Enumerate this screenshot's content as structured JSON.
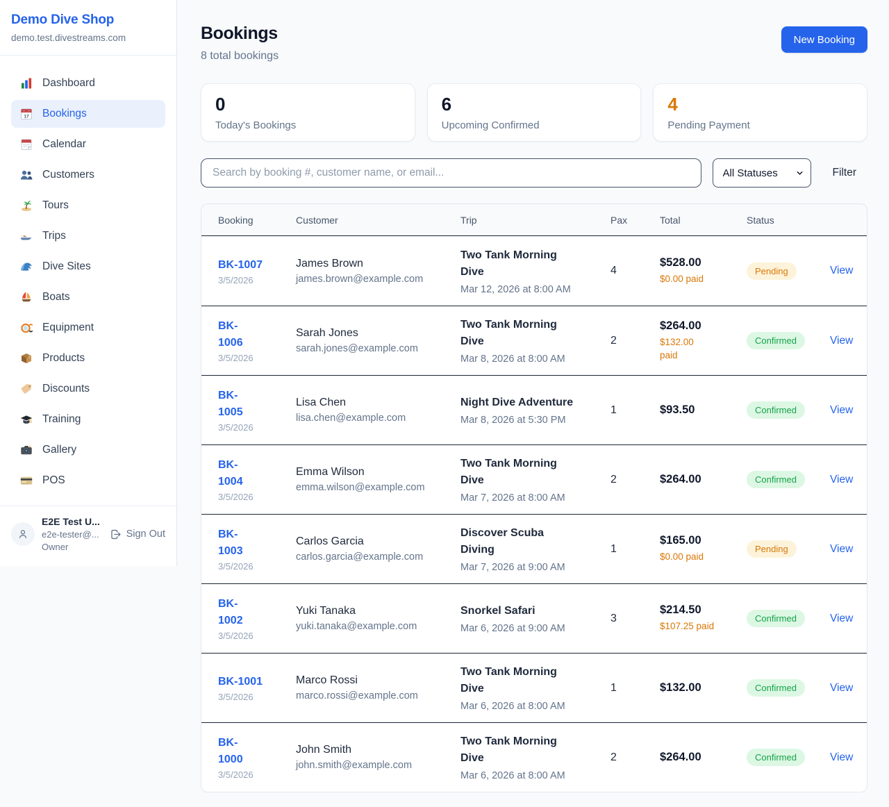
{
  "sidebar": {
    "brand": {
      "name": "Demo Dive Shop",
      "domain": "demo.test.divestreams.com"
    },
    "nav": [
      {
        "label": "Dashboard",
        "icon": "bar-chart",
        "active": false
      },
      {
        "label": "Bookings",
        "icon": "calendar-date",
        "active": true
      },
      {
        "label": "Calendar",
        "icon": "tear-calendar",
        "active": false
      },
      {
        "label": "Customers",
        "icon": "users",
        "active": false
      },
      {
        "label": "Tours",
        "icon": "island",
        "active": false
      },
      {
        "label": "Trips",
        "icon": "speedboat",
        "active": false
      },
      {
        "label": "Dive Sites",
        "icon": "wave",
        "active": false
      },
      {
        "label": "Boats",
        "icon": "sailboat",
        "active": false
      },
      {
        "label": "Equipment",
        "icon": "diving-mask",
        "active": false
      },
      {
        "label": "Products",
        "icon": "package",
        "active": false
      },
      {
        "label": "Discounts",
        "icon": "tag",
        "active": false
      },
      {
        "label": "Training",
        "icon": "grad-cap",
        "active": false
      },
      {
        "label": "Gallery",
        "icon": "camera",
        "active": false
      },
      {
        "label": "POS",
        "icon": "credit-card",
        "active": false
      }
    ],
    "user": {
      "name": "E2E Test U...",
      "email": "e2e-tester@...",
      "role": "Owner",
      "sign_out_label": "Sign Out"
    }
  },
  "header": {
    "title": "Bookings",
    "subtitle": "8 total bookings",
    "new_booking_label": "New Booking"
  },
  "stats": [
    {
      "value": "0",
      "label": "Today's Bookings",
      "value_color": "#0f172a"
    },
    {
      "value": "6",
      "label": "Upcoming Confirmed",
      "value_color": "#0f172a"
    },
    {
      "value": "4",
      "label": "Pending Payment",
      "value_color": "#d97706"
    }
  ],
  "controls": {
    "search_placeholder": "Search by booking #, customer name, or email...",
    "status_filter_selected": "All Statuses",
    "filter_label": "Filter"
  },
  "table": {
    "columns": [
      "Booking",
      "Customer",
      "Trip",
      "Pax",
      "Total",
      "Status",
      ""
    ],
    "rows": [
      {
        "booking_id": "BK-1007",
        "date": "3/5/2026",
        "customer": "James Brown",
        "email": "james.brown@example.com",
        "trip": "Two Tank Morning\nDive",
        "trip_time": "Mar 12, 2026 at 8:00 AM",
        "pax": "4",
        "total": "$528.00",
        "paid": "$0.00 paid",
        "status": "Pending",
        "action": "View"
      },
      {
        "booking_id": "BK-\n1006",
        "date": "3/5/2026",
        "customer": "Sarah Jones",
        "email": "sarah.jones@example.com",
        "trip": "Two Tank Morning\nDive",
        "trip_time": "Mar 8, 2026 at 8:00 AM",
        "pax": "2",
        "total": "$264.00",
        "paid": "$132.00\npaid",
        "status": "Confirmed",
        "action": "View"
      },
      {
        "booking_id": "BK-\n1005",
        "date": "3/5/2026",
        "customer": "Lisa Chen",
        "email": "lisa.chen@example.com",
        "trip": "Night Dive Adventure",
        "trip_time": "Mar 8, 2026 at 5:30 PM",
        "pax": "1",
        "total": "$93.50",
        "paid": "",
        "status": "Confirmed",
        "action": "View"
      },
      {
        "booking_id": "BK-\n1004",
        "date": "3/5/2026",
        "customer": "Emma Wilson",
        "email": "emma.wilson@example.com",
        "trip": "Two Tank Morning\nDive",
        "trip_time": "Mar 7, 2026 at 8:00 AM",
        "pax": "2",
        "total": "$264.00",
        "paid": "",
        "status": "Confirmed",
        "action": "View"
      },
      {
        "booking_id": "BK-\n1003",
        "date": "3/5/2026",
        "customer": "Carlos Garcia",
        "email": "carlos.garcia@example.com",
        "trip": "Discover Scuba\nDiving",
        "trip_time": "Mar 7, 2026 at 9:00 AM",
        "pax": "1",
        "total": "$165.00",
        "paid": "$0.00 paid",
        "status": "Pending",
        "action": "View"
      },
      {
        "booking_id": "BK-\n1002",
        "date": "3/5/2026",
        "customer": "Yuki Tanaka",
        "email": "yuki.tanaka@example.com",
        "trip": "Snorkel Safari",
        "trip_time": "Mar 6, 2026 at 9:00 AM",
        "pax": "3",
        "total": "$214.50",
        "paid": "$107.25 paid",
        "status": "Confirmed",
        "action": "View"
      },
      {
        "booking_id": "BK-1001",
        "date": "3/5/2026",
        "customer": "Marco Rossi",
        "email": "marco.rossi@example.com",
        "trip": "Two Tank Morning\nDive",
        "trip_time": "Mar 6, 2026 at 8:00 AM",
        "pax": "1",
        "total": "$132.00",
        "paid": "",
        "status": "Confirmed",
        "action": "View"
      },
      {
        "booking_id": "BK-\n1000",
        "date": "3/5/2026",
        "customer": "John Smith",
        "email": "john.smith@example.com",
        "trip": "Two Tank Morning\nDive",
        "trip_time": "Mar 6, 2026 at 8:00 AM",
        "pax": "2",
        "total": "$264.00",
        "paid": "",
        "status": "Confirmed",
        "action": "View"
      }
    ]
  },
  "colors": {
    "brand": "#2563eb",
    "pending_text": "#d97706",
    "pending_bg": "#fdf3da",
    "confirmed_text": "#16a34a",
    "confirmed_bg": "#dcf7e3"
  }
}
